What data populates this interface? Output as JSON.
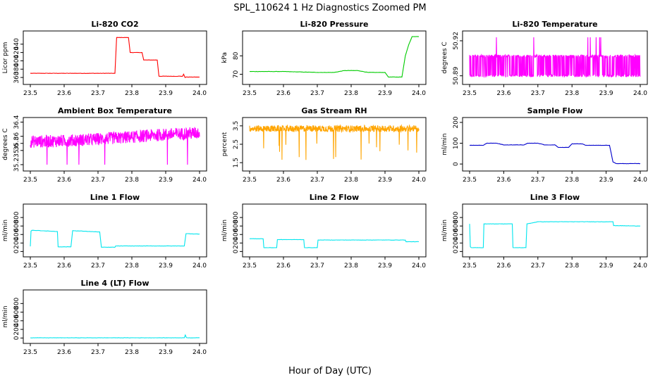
{
  "figure": {
    "title": "SPL_110624  1 Hz Diagnostics Zoomed PM",
    "xlabel": "Hour of Day (UTC)"
  },
  "chart_data": [
    {
      "type": "line",
      "title": "Li-820 CO2",
      "ylabel": "Licor ppm",
      "color": "#ff0000",
      "xlim": [
        23.5,
        24.0
      ],
      "xticks": [
        "23.5",
        "23.6",
        "23.7",
        "23.8",
        "23.9",
        "24.0"
      ],
      "ylim": [
        350,
        465
      ],
      "yticks": [
        360,
        380,
        400,
        420,
        440
      ],
      "series": [
        {
          "x": [
            23.5,
            23.6,
            23.75,
            23.755,
            23.76,
            23.79,
            23.795,
            23.83,
            23.835,
            23.875,
            23.88,
            23.95,
            23.953,
            23.957,
            23.96,
            24.0
          ],
          "y": [
            370,
            370,
            370,
            456,
            456,
            456,
            420,
            420,
            402,
            402,
            363,
            363,
            368,
            360,
            361,
            361
          ]
        }
      ]
    },
    {
      "type": "line",
      "title": "Li-820 Pressure",
      "ylabel": "kPa",
      "color": "#00cc00",
      "xlim": [
        23.5,
        24.0
      ],
      "xticks": [
        "23.5",
        "23.6",
        "23.7",
        "23.8",
        "23.9",
        "24.0"
      ],
      "ylim": [
        66,
        92
      ],
      "yticks": [
        70,
        80
      ],
      "series": [
        {
          "x": [
            23.5,
            23.6,
            23.7,
            23.75,
            23.78,
            23.82,
            23.85,
            23.9,
            23.91,
            23.95,
            23.96,
            23.97,
            23.98,
            24.0
          ],
          "y": [
            71.5,
            71.5,
            71,
            71,
            72,
            72,
            71,
            71,
            68.5,
            68.5,
            80,
            86,
            90.5,
            90.5
          ]
        }
      ]
    },
    {
      "type": "line",
      "title": "Li-820 Temperature",
      "ylabel": "degrees C",
      "color": "#ff00ff",
      "xlim": [
        23.5,
        24.0
      ],
      "xticks": [
        "23.5",
        "23.6",
        "23.7",
        "23.8",
        "23.9",
        "24.0"
      ],
      "ylim": [
        50.885,
        50.926
      ],
      "yticks": [
        50.89,
        50.92
      ],
      "series": [
        {
          "x": [
            23.5,
            24.0
          ],
          "y": [
            50.89,
            50.905
          ]
        }
      ]
    },
    {
      "type": "line",
      "title": "Ambient Box Temperature",
      "ylabel": "degrees C",
      "color": "#ff00ff",
      "xlim": [
        23.5,
        24.0
      ],
      "xticks": [
        "23.5",
        "23.6",
        "23.7",
        "23.8",
        "23.9",
        "24.0"
      ],
      "ylim": [
        35.1,
        36.45
      ],
      "yticks": [
        35.2,
        35.6,
        35.8,
        36.0,
        36.4
      ],
      "series": [
        {
          "x": [
            23.5,
            23.6,
            23.7,
            23.8,
            23.9,
            24.0
          ],
          "y": [
            35.85,
            35.87,
            35.92,
            35.98,
            36.05,
            36.1
          ]
        }
      ]
    },
    {
      "type": "line",
      "title": "Gas Stream RH",
      "ylabel": "percent",
      "color": "#ffa500",
      "xlim": [
        23.5,
        24.0
      ],
      "xticks": [
        "23.5",
        "23.6",
        "23.7",
        "23.8",
        "23.9",
        "24.0"
      ],
      "ylim": [
        1.2,
        3.8
      ],
      "yticks": [
        1.5,
        2.5,
        3.5
      ],
      "series": [
        {
          "x": [
            23.5,
            23.6,
            23.7,
            23.8,
            23.9,
            24.0
          ],
          "y": [
            3.35,
            3.35,
            3.35,
            3.35,
            3.35,
            3.35
          ]
        }
      ]
    },
    {
      "type": "line",
      "title": "Sample Flow",
      "ylabel": "ml/min",
      "color": "#0000cc",
      "xlim": [
        23.5,
        24.0
      ],
      "xticks": [
        "23.5",
        "23.6",
        "23.7",
        "23.8",
        "23.9",
        "24.0"
      ],
      "ylim": [
        -20,
        210
      ],
      "yticks": [
        0,
        100,
        200
      ],
      "series": [
        {
          "x": [
            23.5,
            23.54,
            23.55,
            23.58,
            23.6,
            23.66,
            23.67,
            23.7,
            23.72,
            23.75,
            23.76,
            23.79,
            23.8,
            23.83,
            23.84,
            23.91,
            23.92,
            23.93,
            24.0
          ],
          "y": [
            90,
            90,
            100,
            100,
            92,
            92,
            100,
            100,
            92,
            92,
            80,
            80,
            97,
            97,
            90,
            90,
            10,
            2,
            2
          ]
        }
      ]
    },
    {
      "type": "line",
      "title": "Line 1 Flow",
      "ylabel": "ml/min",
      "color": "#00e5ee",
      "xlim": [
        23.5,
        24.0
      ],
      "xticks": [
        "23.5",
        "23.6",
        "23.7",
        "23.8",
        "23.9",
        "24.0"
      ],
      "ylim": [
        -60,
        1050
      ],
      "yticks": [
        0,
        200,
        400,
        600,
        800
      ],
      "series": [
        {
          "x": [
            23.5,
            23.502,
            23.505,
            23.58,
            23.582,
            23.62,
            23.625,
            23.705,
            23.71,
            23.75,
            23.752,
            23.955,
            23.96,
            24.0
          ],
          "y": [
            120,
            480,
            500,
            470,
            110,
            110,
            490,
            460,
            100,
            100,
            130,
            130,
            420,
            410
          ]
        }
      ]
    },
    {
      "type": "line",
      "title": "Line 2 Flow",
      "ylabel": "ml/min",
      "color": "#00e5ee",
      "xlim": [
        23.5,
        24.0
      ],
      "xticks": [
        "23.5",
        "23.6",
        "23.7",
        "23.8",
        "23.9",
        "24.0"
      ],
      "ylim": [
        -60,
        1050
      ],
      "yticks": [
        0,
        200,
        400,
        600,
        800
      ],
      "series": [
        {
          "x": [
            23.5,
            23.54,
            23.542,
            23.58,
            23.582,
            23.66,
            23.662,
            23.7,
            23.702,
            23.96,
            23.962,
            24.0
          ],
          "y": [
            300,
            300,
            90,
            90,
            280,
            280,
            90,
            90,
            270,
            270,
            230,
            230
          ]
        }
      ]
    },
    {
      "type": "line",
      "title": "Line 3 Flow",
      "ylabel": "ml/min",
      "color": "#00e5ee",
      "xlim": [
        23.5,
        24.0
      ],
      "xticks": [
        "23.5",
        "23.6",
        "23.7",
        "23.8",
        "23.9",
        "24.0"
      ],
      "ylim": [
        -60,
        1050
      ],
      "yticks": [
        0,
        200,
        400,
        600,
        800
      ],
      "series": [
        {
          "x": [
            23.5,
            23.502,
            23.505,
            23.54,
            23.542,
            23.625,
            23.627,
            23.665,
            23.668,
            23.7,
            23.8,
            23.9,
            23.92,
            23.922,
            24.0
          ],
          "y": [
            650,
            110,
            90,
            90,
            650,
            650,
            90,
            90,
            650,
            700,
            700,
            700,
            700,
            610,
            600
          ]
        }
      ]
    },
    {
      "type": "line",
      "title": "Line 4 (LT) Flow",
      "ylabel": "ml/min",
      "color": "#00e5ee",
      "xlim": [
        23.5,
        24.0
      ],
      "xticks": [
        "23.5",
        "23.6",
        "23.7",
        "23.8",
        "23.9",
        "24.0"
      ],
      "ylim": [
        -60,
        1050
      ],
      "yticks": [
        0,
        200,
        400,
        600,
        800
      ],
      "series": [
        {
          "x": [
            23.5,
            23.955,
            23.958,
            23.961,
            23.965,
            24.0
          ],
          "y": [
            5,
            5,
            70,
            10,
            5,
            5
          ]
        }
      ]
    }
  ]
}
